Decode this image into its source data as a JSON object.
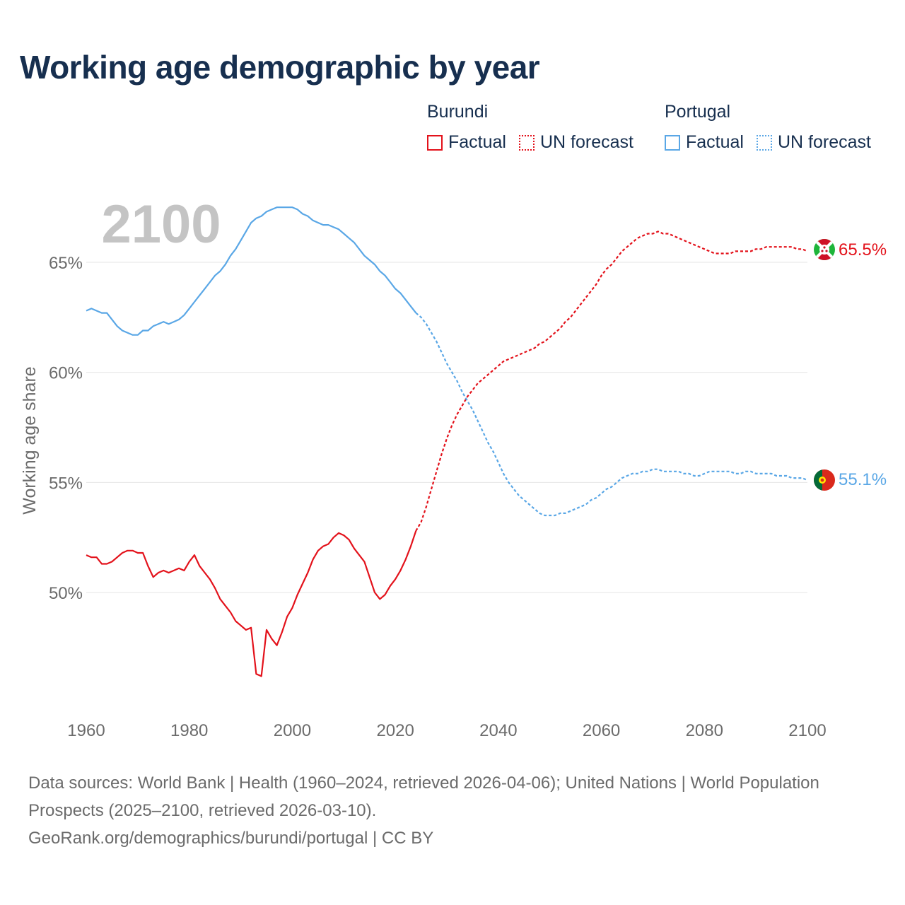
{
  "title": "Working age demographic by year",
  "legend": {
    "groups": [
      {
        "name": "Burundi",
        "items": [
          {
            "label": "Factual",
            "style": "solid"
          },
          {
            "label": "UN forecast",
            "style": "dotted"
          }
        ],
        "color": "#e3121b"
      },
      {
        "name": "Portugal",
        "items": [
          {
            "label": "Factual",
            "style": "solid"
          },
          {
            "label": "UN forecast",
            "style": "dotted"
          }
        ],
        "color": "#5aa7e6"
      }
    ]
  },
  "year_watermark": "2100",
  "sources": {
    "line1": "Data sources: World Bank | Health (1960–2024, retrieved 2026-04-06); United Nations | World Population Prospects (2025–2100, retrieved 2026-03-10).",
    "line2": "GeoRank.org/demographics/burundi/portugal | CC BY"
  },
  "chart_data": {
    "type": "line",
    "title": "Working age demographic by year",
    "xlabel": "",
    "ylabel": "Working age share",
    "xlim": [
      1960,
      2100
    ],
    "ylim": [
      45,
      68
    ],
    "x_ticks": [
      1960,
      1980,
      2000,
      2020,
      2040,
      2060,
      2080,
      2100
    ],
    "y_ticks": [
      50,
      55,
      60,
      65
    ],
    "y_tick_labels": [
      "50%",
      "55%",
      "60%",
      "65%"
    ],
    "grid": true,
    "factual_end_year": 2024,
    "series": [
      {
        "name": "Burundi",
        "color": "#e3121b",
        "end_label": "65.5%",
        "points": [
          [
            1960,
            51.7
          ],
          [
            1961,
            51.6
          ],
          [
            1962,
            51.6
          ],
          [
            1963,
            51.3
          ],
          [
            1964,
            51.3
          ],
          [
            1965,
            51.4
          ],
          [
            1966,
            51.6
          ],
          [
            1967,
            51.8
          ],
          [
            1968,
            51.9
          ],
          [
            1969,
            51.9
          ],
          [
            1970,
            51.8
          ],
          [
            1971,
            51.8
          ],
          [
            1972,
            51.2
          ],
          [
            1973,
            50.7
          ],
          [
            1974,
            50.9
          ],
          [
            1975,
            51.0
          ],
          [
            1976,
            50.9
          ],
          [
            1977,
            51.0
          ],
          [
            1978,
            51.1
          ],
          [
            1979,
            51.0
          ],
          [
            1980,
            51.4
          ],
          [
            1981,
            51.7
          ],
          [
            1982,
            51.2
          ],
          [
            1983,
            50.9
          ],
          [
            1984,
            50.6
          ],
          [
            1985,
            50.2
          ],
          [
            1986,
            49.7
          ],
          [
            1987,
            49.4
          ],
          [
            1988,
            49.1
          ],
          [
            1989,
            48.7
          ],
          [
            1990,
            48.5
          ],
          [
            1991,
            48.3
          ],
          [
            1992,
            48.4
          ],
          [
            1993,
            46.3
          ],
          [
            1994,
            46.2
          ],
          [
            1995,
            48.3
          ],
          [
            1996,
            47.9
          ],
          [
            1997,
            47.6
          ],
          [
            1998,
            48.2
          ],
          [
            1999,
            48.9
          ],
          [
            2000,
            49.3
          ],
          [
            2001,
            49.9
          ],
          [
            2002,
            50.4
          ],
          [
            2003,
            50.9
          ],
          [
            2004,
            51.5
          ],
          [
            2005,
            51.9
          ],
          [
            2006,
            52.1
          ],
          [
            2007,
            52.2
          ],
          [
            2008,
            52.5
          ],
          [
            2009,
            52.7
          ],
          [
            2010,
            52.6
          ],
          [
            2011,
            52.4
          ],
          [
            2012,
            52.0
          ],
          [
            2013,
            51.7
          ],
          [
            2014,
            51.4
          ],
          [
            2015,
            50.7
          ],
          [
            2016,
            50.0
          ],
          [
            2017,
            49.7
          ],
          [
            2018,
            49.9
          ],
          [
            2019,
            50.3
          ],
          [
            2020,
            50.6
          ],
          [
            2021,
            51.0
          ],
          [
            2022,
            51.5
          ],
          [
            2023,
            52.1
          ],
          [
            2024,
            52.8
          ],
          [
            2025,
            53.2
          ],
          [
            2026,
            53.9
          ],
          [
            2027,
            54.7
          ],
          [
            2028,
            55.5
          ],
          [
            2029,
            56.3
          ],
          [
            2030,
            57.0
          ],
          [
            2031,
            57.6
          ],
          [
            2032,
            58.1
          ],
          [
            2033,
            58.5
          ],
          [
            2034,
            58.9
          ],
          [
            2035,
            59.2
          ],
          [
            2036,
            59.5
          ],
          [
            2037,
            59.7
          ],
          [
            2038,
            59.9
          ],
          [
            2039,
            60.1
          ],
          [
            2040,
            60.3
          ],
          [
            2041,
            60.5
          ],
          [
            2042,
            60.6
          ],
          [
            2043,
            60.7
          ],
          [
            2044,
            60.8
          ],
          [
            2045,
            60.9
          ],
          [
            2046,
            61.0
          ],
          [
            2047,
            61.1
          ],
          [
            2048,
            61.3
          ],
          [
            2049,
            61.4
          ],
          [
            2050,
            61.6
          ],
          [
            2051,
            61.8
          ],
          [
            2052,
            62.0
          ],
          [
            2053,
            62.3
          ],
          [
            2054,
            62.5
          ],
          [
            2055,
            62.8
          ],
          [
            2056,
            63.1
          ],
          [
            2057,
            63.4
          ],
          [
            2058,
            63.7
          ],
          [
            2059,
            64.0
          ],
          [
            2060,
            64.4
          ],
          [
            2061,
            64.7
          ],
          [
            2062,
            64.9
          ],
          [
            2063,
            65.2
          ],
          [
            2064,
            65.5
          ],
          [
            2065,
            65.7
          ],
          [
            2066,
            65.9
          ],
          [
            2067,
            66.1
          ],
          [
            2068,
            66.2
          ],
          [
            2069,
            66.3
          ],
          [
            2070,
            66.3
          ],
          [
            2071,
            66.4
          ],
          [
            2072,
            66.3
          ],
          [
            2073,
            66.3
          ],
          [
            2074,
            66.2
          ],
          [
            2075,
            66.1
          ],
          [
            2076,
            66.0
          ],
          [
            2077,
            65.9
          ],
          [
            2078,
            65.8
          ],
          [
            2079,
            65.7
          ],
          [
            2080,
            65.6
          ],
          [
            2081,
            65.5
          ],
          [
            2082,
            65.4
          ],
          [
            2083,
            65.4
          ],
          [
            2084,
            65.4
          ],
          [
            2085,
            65.4
          ],
          [
            2086,
            65.5
          ],
          [
            2087,
            65.5
          ],
          [
            2088,
            65.5
          ],
          [
            2089,
            65.5
          ],
          [
            2090,
            65.6
          ],
          [
            2091,
            65.6
          ],
          [
            2092,
            65.7
          ],
          [
            2093,
            65.7
          ],
          [
            2094,
            65.7
          ],
          [
            2095,
            65.7
          ],
          [
            2096,
            65.7
          ],
          [
            2097,
            65.7
          ],
          [
            2098,
            65.6
          ],
          [
            2099,
            65.6
          ],
          [
            2100,
            65.5
          ]
        ]
      },
      {
        "name": "Portugal",
        "color": "#5aa7e6",
        "end_label": "55.1%",
        "points": [
          [
            1960,
            62.8
          ],
          [
            1961,
            62.9
          ],
          [
            1962,
            62.8
          ],
          [
            1963,
            62.7
          ],
          [
            1964,
            62.7
          ],
          [
            1965,
            62.4
          ],
          [
            1966,
            62.1
          ],
          [
            1967,
            61.9
          ],
          [
            1968,
            61.8
          ],
          [
            1969,
            61.7
          ],
          [
            1970,
            61.7
          ],
          [
            1971,
            61.9
          ],
          [
            1972,
            61.9
          ],
          [
            1973,
            62.1
          ],
          [
            1974,
            62.2
          ],
          [
            1975,
            62.3
          ],
          [
            1976,
            62.2
          ],
          [
            1977,
            62.3
          ],
          [
            1978,
            62.4
          ],
          [
            1979,
            62.6
          ],
          [
            1980,
            62.9
          ],
          [
            1981,
            63.2
          ],
          [
            1982,
            63.5
          ],
          [
            1983,
            63.8
          ],
          [
            1984,
            64.1
          ],
          [
            1985,
            64.4
          ],
          [
            1986,
            64.6
          ],
          [
            1987,
            64.9
          ],
          [
            1988,
            65.3
          ],
          [
            1989,
            65.6
          ],
          [
            1990,
            66.0
          ],
          [
            1991,
            66.4
          ],
          [
            1992,
            66.8
          ],
          [
            1993,
            67.0
          ],
          [
            1994,
            67.1
          ],
          [
            1995,
            67.3
          ],
          [
            1996,
            67.4
          ],
          [
            1997,
            67.5
          ],
          [
            1998,
            67.5
          ],
          [
            1999,
            67.5
          ],
          [
            2000,
            67.5
          ],
          [
            2001,
            67.4
          ],
          [
            2002,
            67.2
          ],
          [
            2003,
            67.1
          ],
          [
            2004,
            66.9
          ],
          [
            2005,
            66.8
          ],
          [
            2006,
            66.7
          ],
          [
            2007,
            66.7
          ],
          [
            2008,
            66.6
          ],
          [
            2009,
            66.5
          ],
          [
            2010,
            66.3
          ],
          [
            2011,
            66.1
          ],
          [
            2012,
            65.9
          ],
          [
            2013,
            65.6
          ],
          [
            2014,
            65.3
          ],
          [
            2015,
            65.1
          ],
          [
            2016,
            64.9
          ],
          [
            2017,
            64.6
          ],
          [
            2018,
            64.4
          ],
          [
            2019,
            64.1
          ],
          [
            2020,
            63.8
          ],
          [
            2021,
            63.6
          ],
          [
            2022,
            63.3
          ],
          [
            2023,
            63.0
          ],
          [
            2024,
            62.7
          ],
          [
            2025,
            62.5
          ],
          [
            2026,
            62.2
          ],
          [
            2027,
            61.8
          ],
          [
            2028,
            61.4
          ],
          [
            2029,
            60.9
          ],
          [
            2030,
            60.4
          ],
          [
            2031,
            60.0
          ],
          [
            2032,
            59.6
          ],
          [
            2033,
            59.1
          ],
          [
            2034,
            58.7
          ],
          [
            2035,
            58.3
          ],
          [
            2036,
            57.8
          ],
          [
            2037,
            57.3
          ],
          [
            2038,
            56.8
          ],
          [
            2039,
            56.4
          ],
          [
            2040,
            55.9
          ],
          [
            2041,
            55.4
          ],
          [
            2042,
            55.0
          ],
          [
            2043,
            54.7
          ],
          [
            2044,
            54.4
          ],
          [
            2045,
            54.2
          ],
          [
            2046,
            54.0
          ],
          [
            2047,
            53.8
          ],
          [
            2048,
            53.6
          ],
          [
            2049,
            53.5
          ],
          [
            2050,
            53.5
          ],
          [
            2051,
            53.5
          ],
          [
            2052,
            53.6
          ],
          [
            2053,
            53.6
          ],
          [
            2054,
            53.7
          ],
          [
            2055,
            53.8
          ],
          [
            2056,
            53.9
          ],
          [
            2057,
            54.0
          ],
          [
            2058,
            54.2
          ],
          [
            2059,
            54.3
          ],
          [
            2060,
            54.5
          ],
          [
            2061,
            54.7
          ],
          [
            2062,
            54.8
          ],
          [
            2063,
            55.0
          ],
          [
            2064,
            55.2
          ],
          [
            2065,
            55.3
          ],
          [
            2066,
            55.4
          ],
          [
            2067,
            55.4
          ],
          [
            2068,
            55.5
          ],
          [
            2069,
            55.5
          ],
          [
            2070,
            55.6
          ],
          [
            2071,
            55.6
          ],
          [
            2072,
            55.5
          ],
          [
            2073,
            55.5
          ],
          [
            2074,
            55.5
          ],
          [
            2075,
            55.5
          ],
          [
            2076,
            55.4
          ],
          [
            2077,
            55.4
          ],
          [
            2078,
            55.3
          ],
          [
            2079,
            55.3
          ],
          [
            2080,
            55.4
          ],
          [
            2081,
            55.5
          ],
          [
            2082,
            55.5
          ],
          [
            2083,
            55.5
          ],
          [
            2084,
            55.5
          ],
          [
            2085,
            55.5
          ],
          [
            2086,
            55.4
          ],
          [
            2087,
            55.4
          ],
          [
            2088,
            55.5
          ],
          [
            2089,
            55.5
          ],
          [
            2090,
            55.4
          ],
          [
            2091,
            55.4
          ],
          [
            2092,
            55.4
          ],
          [
            2093,
            55.4
          ],
          [
            2094,
            55.3
          ],
          [
            2095,
            55.3
          ],
          [
            2096,
            55.3
          ],
          [
            2097,
            55.2
          ],
          [
            2098,
            55.2
          ],
          [
            2099,
            55.2
          ],
          [
            2100,
            55.1
          ]
        ]
      }
    ]
  }
}
